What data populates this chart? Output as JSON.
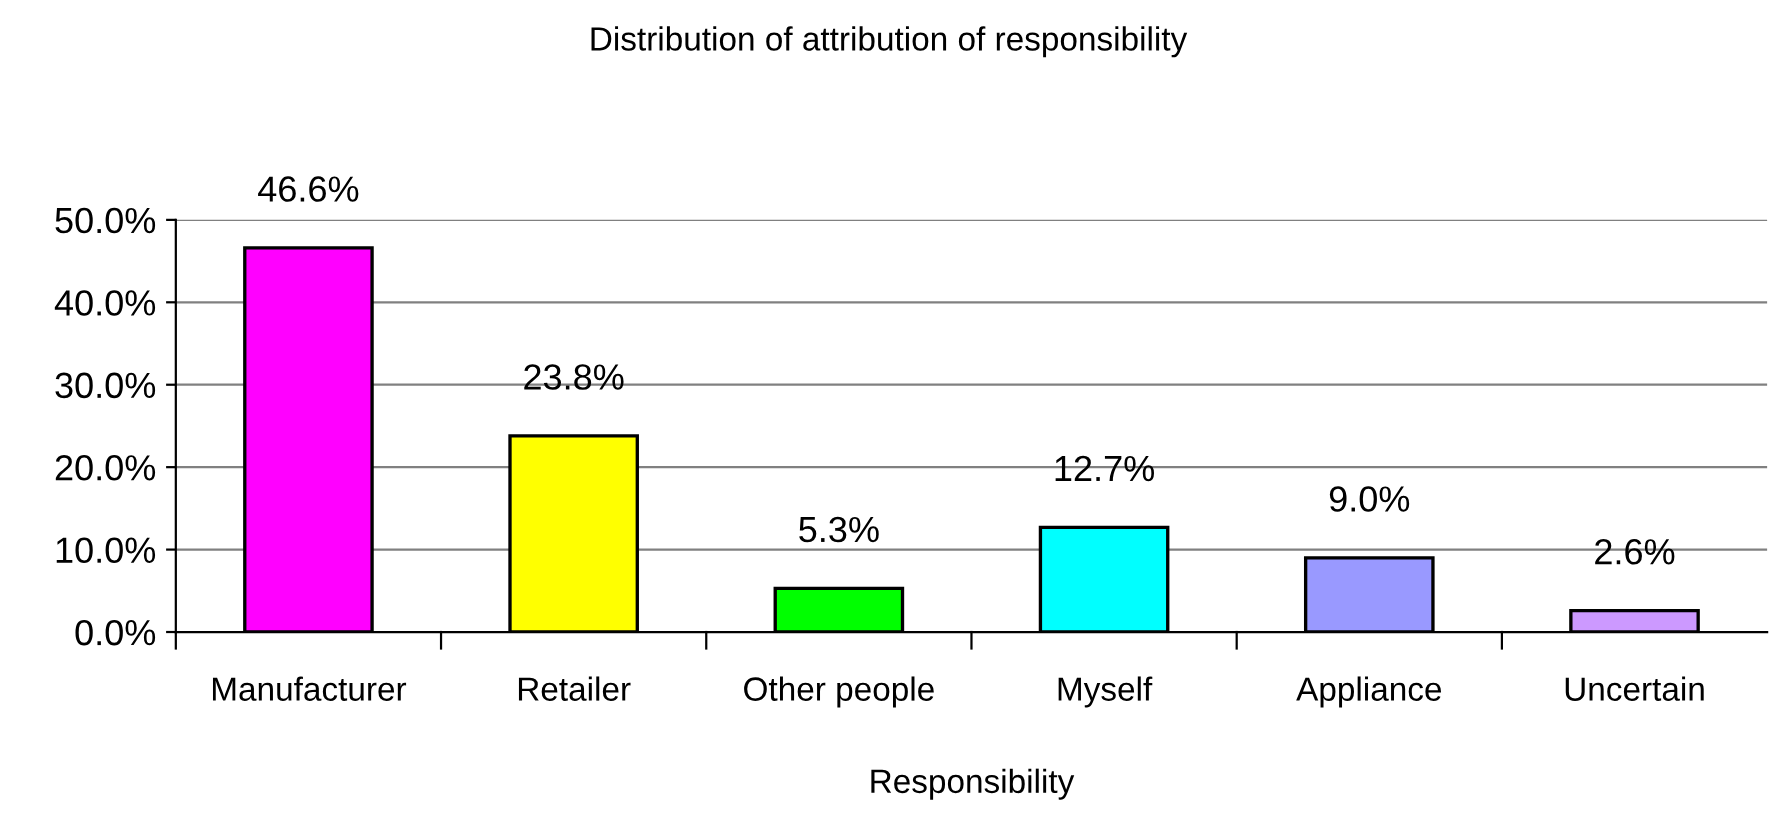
{
  "chart_data": {
    "type": "bar",
    "title": "Distribution of attribution of responsibility",
    "xlabel": "Responsibility",
    "categories": [
      "Manufacturer",
      "Retailer",
      "Other people",
      "Myself",
      "Appliance",
      "Uncertain"
    ],
    "values": [
      46.6,
      23.8,
      5.3,
      12.7,
      9.0,
      2.6
    ],
    "colors": [
      "#ff00ff",
      "#ffff00",
      "#00ff00",
      "#00ffff",
      "#9999ff",
      "#cc99ff"
    ],
    "value_labels": [
      "46.6%",
      "23.8%",
      "5.3%",
      "12.7%",
      "9.0%",
      "2.6%"
    ],
    "ylim": [
      0,
      50
    ],
    "yticks": [
      {
        "value": 0,
        "label": "0.0%"
      },
      {
        "value": 10,
        "label": "10.0%"
      },
      {
        "value": 20,
        "label": "20.0%"
      },
      {
        "value": 30,
        "label": "30.0%"
      },
      {
        "value": 40,
        "label": "40.0%"
      },
      {
        "value": 50,
        "label": "50.0%"
      }
    ],
    "grid": "y"
  }
}
